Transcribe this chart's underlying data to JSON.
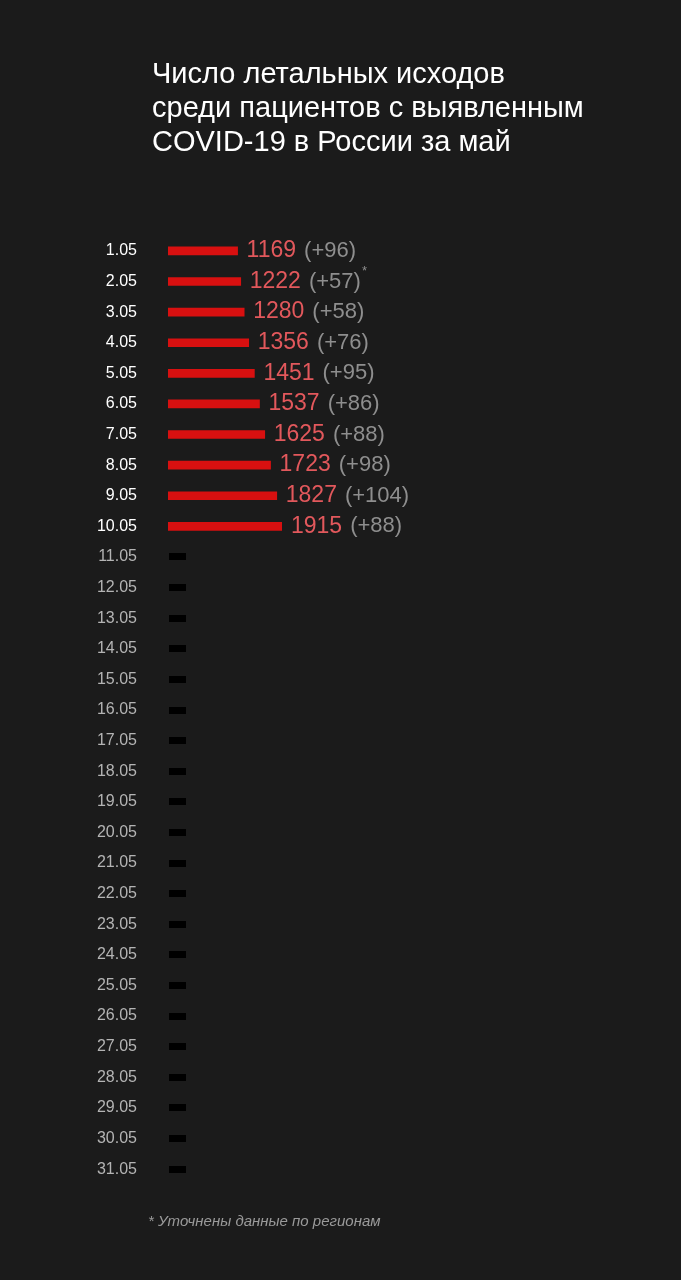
{
  "chart_data": {
    "type": "bar",
    "orientation": "horizontal",
    "title": "Число летальных исходов среди пациентов с выявленным COVID-19 в России за май",
    "categories": [
      "1.05",
      "2.05",
      "3.05",
      "4.05",
      "5.05",
      "6.05",
      "7.05",
      "8.05",
      "9.05",
      "10.05",
      "11.05",
      "12.05",
      "13.05",
      "14.05",
      "15.05",
      "16.05",
      "17.05",
      "18.05",
      "19.05",
      "20.05",
      "21.05",
      "22.05",
      "23.05",
      "24.05",
      "25.05",
      "26.05",
      "27.05",
      "28.05",
      "29.05",
      "30.05",
      "31.05"
    ],
    "values": [
      1169,
      1222,
      1280,
      1356,
      1451,
      1537,
      1625,
      1723,
      1827,
      1915,
      null,
      null,
      null,
      null,
      null,
      null,
      null,
      null,
      null,
      null,
      null,
      null,
      null,
      null,
      null,
      null,
      null,
      null,
      null,
      null,
      null
    ],
    "value_labels": [
      "1169 (+96)",
      "1222 (+57)$^{*}$",
      "1280 (+58)",
      "1356 (+76)",
      "1451 (+95)",
      "1537 (+86)",
      "1625 (+88)",
      "1723 (+98)",
      "1827 (+104)",
      "1915 (+88)",
      null,
      null,
      null,
      null,
      null,
      null,
      null,
      null,
      null,
      null,
      null,
      null,
      null,
      null,
      null,
      null,
      null,
      null,
      null,
      null,
      null
    ],
    "color": "#d81010",
    "tick_labels": "y",
    "annotations": [
      "* Уточнены данные по регионам"
    ]
  }
}
